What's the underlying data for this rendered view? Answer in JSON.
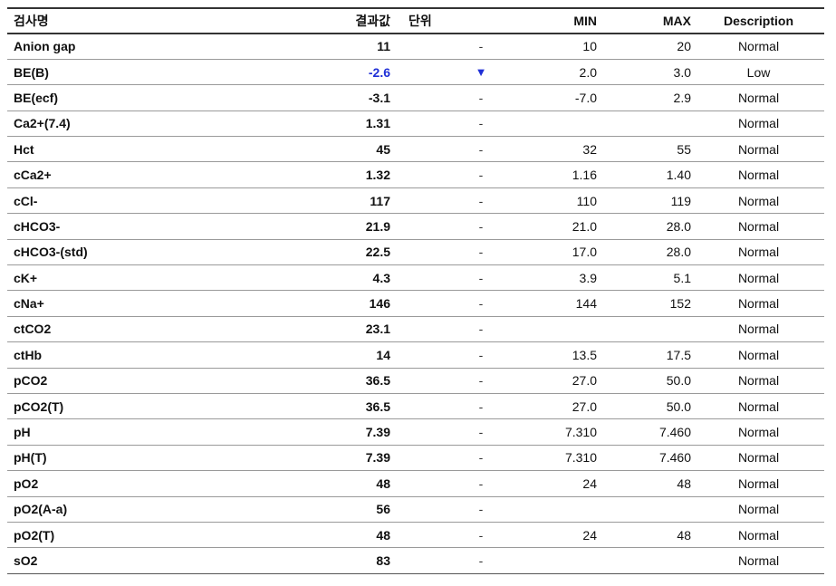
{
  "headers": {
    "name": "검사명",
    "result": "결과값",
    "unit": "단위",
    "flag": "",
    "min": "MIN",
    "max": "MAX",
    "description": "Description"
  },
  "colors": {
    "low_value": "#1f2fd6"
  },
  "rows": [
    {
      "name": "Anion gap",
      "result": "11",
      "flag": "-",
      "flag_icon": "",
      "min": "10",
      "max": "20",
      "description": "Normal",
      "low": false
    },
    {
      "name": "BE(B)",
      "result": "-2.6",
      "flag": "▼",
      "flag_icon": "down-triangle-icon",
      "min": "2.0",
      "max": "3.0",
      "description": "Low",
      "low": true
    },
    {
      "name": "BE(ecf)",
      "result": "-3.1",
      "flag": "-",
      "flag_icon": "",
      "min": "-7.0",
      "max": "2.9",
      "description": "Normal",
      "low": false
    },
    {
      "name": "Ca2+(7.4)",
      "result": "1.31",
      "flag": "-",
      "flag_icon": "",
      "min": "",
      "max": "",
      "description": "Normal",
      "low": false
    },
    {
      "name": "Hct",
      "result": "45",
      "flag": "-",
      "flag_icon": "",
      "min": "32",
      "max": "55",
      "description": "Normal",
      "low": false
    },
    {
      "name": "cCa2+",
      "result": "1.32",
      "flag": "-",
      "flag_icon": "",
      "min": "1.16",
      "max": "1.40",
      "description": "Normal",
      "low": false
    },
    {
      "name": "cCl-",
      "result": "117",
      "flag": "-",
      "flag_icon": "",
      "min": "110",
      "max": "119",
      "description": "Normal",
      "low": false
    },
    {
      "name": "cHCO3-",
      "result": "21.9",
      "flag": "-",
      "flag_icon": "",
      "min": "21.0",
      "max": "28.0",
      "description": "Normal",
      "low": false
    },
    {
      "name": "cHCO3-(std)",
      "result": "22.5",
      "flag": "-",
      "flag_icon": "",
      "min": "17.0",
      "max": "28.0",
      "description": "Normal",
      "low": false
    },
    {
      "name": "cK+",
      "result": "4.3",
      "flag": "-",
      "flag_icon": "",
      "min": "3.9",
      "max": "5.1",
      "description": "Normal",
      "low": false
    },
    {
      "name": "cNa+",
      "result": "146",
      "flag": "-",
      "flag_icon": "",
      "min": "144",
      "max": "152",
      "description": "Normal",
      "low": false
    },
    {
      "name": "ctCO2",
      "result": "23.1",
      "flag": "-",
      "flag_icon": "",
      "min": "",
      "max": "",
      "description": "Normal",
      "low": false
    },
    {
      "name": "ctHb",
      "result": "14",
      "flag": "-",
      "flag_icon": "",
      "min": "13.5",
      "max": "17.5",
      "description": "Normal",
      "low": false
    },
    {
      "name": "pCO2",
      "result": "36.5",
      "flag": "-",
      "flag_icon": "",
      "min": "27.0",
      "max": "50.0",
      "description": "Normal",
      "low": false
    },
    {
      "name": "pCO2(T)",
      "result": "36.5",
      "flag": "-",
      "flag_icon": "",
      "min": "27.0",
      "max": "50.0",
      "description": "Normal",
      "low": false
    },
    {
      "name": "pH",
      "result": "7.39",
      "flag": "-",
      "flag_icon": "",
      "min": "7.310",
      "max": "7.460",
      "description": "Normal",
      "low": false
    },
    {
      "name": "pH(T)",
      "result": "7.39",
      "flag": "-",
      "flag_icon": "",
      "min": "7.310",
      "max": "7.460",
      "description": "Normal",
      "low": false
    },
    {
      "name": "pO2",
      "result": "48",
      "flag": "-",
      "flag_icon": "",
      "min": "24",
      "max": "48",
      "description": "Normal",
      "low": false
    },
    {
      "name": "pO2(A-a)",
      "result": "56",
      "flag": "-",
      "flag_icon": "",
      "min": "",
      "max": "",
      "description": "Normal",
      "low": false
    },
    {
      "name": "pO2(T)",
      "result": "48",
      "flag": "-",
      "flag_icon": "",
      "min": "24",
      "max": "48",
      "description": "Normal",
      "low": false
    },
    {
      "name": "sO2",
      "result": "83",
      "flag": "-",
      "flag_icon": "",
      "min": "",
      "max": "",
      "description": "Normal",
      "low": false
    }
  ]
}
